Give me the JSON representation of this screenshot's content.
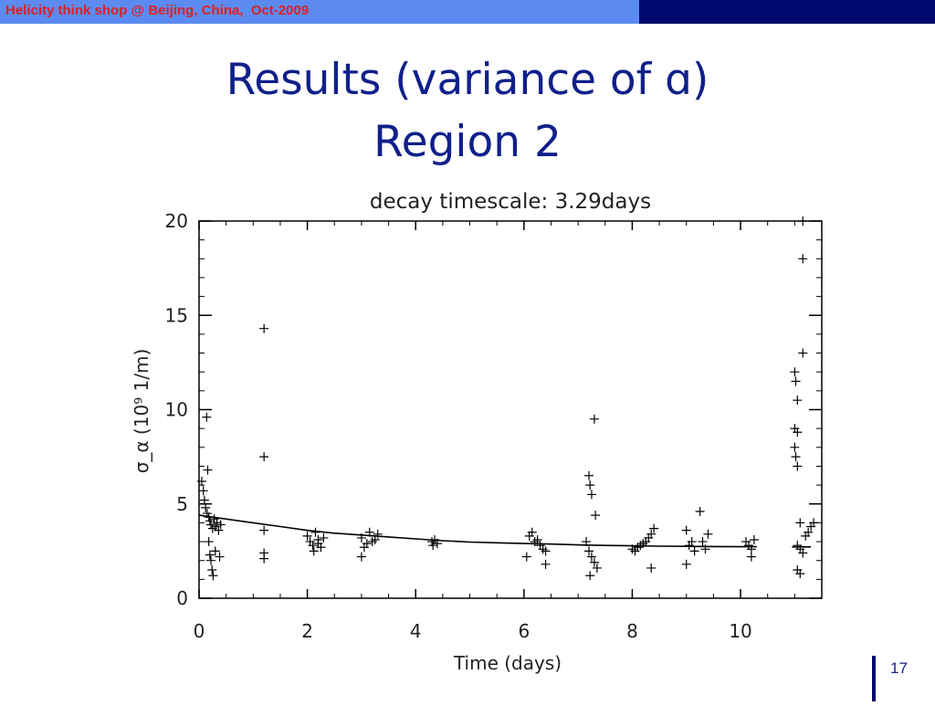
{
  "header": {
    "event_caption": "Helicity think shop @ Beijing, China,  Oct-2009"
  },
  "slide": {
    "title_line1": "Results (variance of ɑ)",
    "title_line2": "Region 2",
    "page_number": "17"
  },
  "colors": {
    "header_light": "#5b8bf0",
    "header_dark": "#000a6e",
    "header_text": "#e02020",
    "title_text": "#10208a"
  },
  "chart_data": {
    "type": "scatter",
    "title": "decay timescale: 3.29days",
    "xlabel": "Time (days)",
    "ylabel": "σ_α (10⁹ 1/m)",
    "xlim": [
      0,
      11.5
    ],
    "ylim": [
      0,
      20
    ],
    "xticks": [
      0,
      2,
      4,
      6,
      8,
      10
    ],
    "yticks": [
      0,
      5,
      10,
      15,
      20
    ],
    "grid": false,
    "series": [
      {
        "marker": "+",
        "points": [
          [
            0.05,
            6.2
          ],
          [
            0.08,
            5.7
          ],
          [
            0.1,
            5.2
          ],
          [
            0.12,
            4.8
          ],
          [
            0.15,
            4.5
          ],
          [
            0.18,
            4.3
          ],
          [
            0.2,
            4.1
          ],
          [
            0.22,
            3.9
          ],
          [
            0.25,
            3.7
          ],
          [
            0.28,
            4.2
          ],
          [
            0.3,
            3.8
          ],
          [
            0.33,
            4.0
          ],
          [
            0.36,
            3.6
          ],
          [
            0.4,
            3.9
          ],
          [
            0.14,
            9.6
          ],
          [
            0.16,
            6.8
          ],
          [
            0.2,
            2.3
          ],
          [
            0.22,
            2.0
          ],
          [
            0.24,
            1.5
          ],
          [
            0.26,
            1.2
          ],
          [
            0.3,
            2.5
          ],
          [
            0.18,
            3.0
          ],
          [
            0.38,
            2.2
          ],
          [
            1.2,
            14.3
          ],
          [
            1.2,
            7.5
          ],
          [
            1.2,
            3.6
          ],
          [
            1.2,
            2.4
          ],
          [
            1.2,
            2.1
          ],
          [
            2.0,
            3.3
          ],
          [
            2.05,
            3.0
          ],
          [
            2.1,
            2.8
          ],
          [
            2.15,
            3.5
          ],
          [
            2.2,
            3.1
          ],
          [
            2.25,
            2.7
          ],
          [
            2.3,
            3.2
          ],
          [
            2.12,
            2.5
          ],
          [
            2.2,
            2.9
          ],
          [
            3.0,
            3.2
          ],
          [
            3.05,
            2.7
          ],
          [
            3.1,
            2.9
          ],
          [
            3.15,
            3.5
          ],
          [
            3.2,
            3.0
          ],
          [
            3.25,
            3.1
          ],
          [
            3.3,
            3.4
          ],
          [
            3.0,
            2.2
          ],
          [
            4.3,
            3.0
          ],
          [
            4.32,
            2.8
          ],
          [
            4.35,
            3.1
          ],
          [
            4.4,
            2.9
          ],
          [
            6.1,
            3.3
          ],
          [
            6.15,
            3.5
          ],
          [
            6.2,
            3.0
          ],
          [
            6.25,
            3.1
          ],
          [
            6.3,
            2.8
          ],
          [
            6.35,
            2.6
          ],
          [
            6.4,
            2.5
          ],
          [
            6.05,
            2.2
          ],
          [
            6.4,
            1.8
          ],
          [
            7.2,
            6.5
          ],
          [
            7.22,
            6.0
          ],
          [
            7.25,
            5.5
          ],
          [
            7.3,
            9.5
          ],
          [
            7.32,
            4.4
          ],
          [
            7.15,
            3.0
          ],
          [
            7.2,
            2.5
          ],
          [
            7.25,
            2.2
          ],
          [
            7.3,
            1.9
          ],
          [
            7.35,
            1.6
          ],
          [
            7.22,
            1.2
          ],
          [
            8.0,
            2.6
          ],
          [
            8.05,
            2.5
          ],
          [
            8.1,
            2.7
          ],
          [
            8.15,
            2.8
          ],
          [
            8.2,
            2.9
          ],
          [
            8.25,
            3.0
          ],
          [
            8.3,
            3.2
          ],
          [
            8.35,
            3.4
          ],
          [
            8.4,
            3.7
          ],
          [
            8.35,
            1.6
          ],
          [
            9.0,
            3.6
          ],
          [
            9.05,
            2.8
          ],
          [
            9.1,
            3.0
          ],
          [
            9.15,
            2.5
          ],
          [
            9.0,
            1.8
          ],
          [
            9.25,
            4.6
          ],
          [
            9.3,
            3.0
          ],
          [
            9.35,
            2.6
          ],
          [
            9.4,
            3.4
          ],
          [
            10.1,
            3.0
          ],
          [
            10.15,
            2.8
          ],
          [
            10.2,
            2.6
          ],
          [
            10.25,
            3.1
          ],
          [
            10.2,
            2.2
          ],
          [
            11.0,
            12.0
          ],
          [
            11.02,
            11.5
          ],
          [
            11.05,
            10.5
          ],
          [
            11.0,
            9.0
          ],
          [
            11.05,
            8.8
          ],
          [
            11.0,
            8.0
          ],
          [
            11.02,
            7.5
          ],
          [
            11.05,
            7.0
          ],
          [
            11.1,
            4.0
          ],
          [
            11.05,
            2.8
          ],
          [
            11.1,
            2.6
          ],
          [
            11.15,
            2.4
          ],
          [
            11.05,
            1.5
          ],
          [
            11.1,
            1.3
          ],
          [
            11.15,
            13.0
          ],
          [
            11.15,
            18.0
          ],
          [
            11.15,
            20.0
          ],
          [
            11.25,
            3.5
          ],
          [
            11.3,
            3.8
          ],
          [
            11.35,
            4.0
          ],
          [
            11.2,
            3.3
          ]
        ]
      },
      {
        "type": "line",
        "segments": [
          [
            [
              0,
              4.4
            ],
            [
              0.5,
              4.2
            ],
            [
              1.0,
              4.0
            ],
            [
              1.5,
              3.8
            ],
            [
              2.0,
              3.6
            ],
            [
              2.5,
              3.45
            ],
            [
              3.0,
              3.35
            ],
            [
              3.5,
              3.25
            ],
            [
              4.0,
              3.15
            ],
            [
              4.5,
              3.05
            ],
            [
              5.0,
              2.98
            ],
            [
              5.5,
              2.94
            ],
            [
              6.0,
              2.9
            ],
            [
              6.5,
              2.87
            ],
            [
              7.0,
              2.83
            ],
            [
              7.5,
              2.8
            ],
            [
              8.0,
              2.78
            ],
            [
              8.5,
              2.76
            ],
            [
              9.0,
              2.75
            ],
            [
              9.5,
              2.74
            ],
            [
              10.0,
              2.73
            ],
            [
              10.3,
              2.73
            ]
          ],
          [
            [
              10.95,
              2.72
            ],
            [
              11.3,
              2.72
            ]
          ]
        ]
      }
    ]
  }
}
